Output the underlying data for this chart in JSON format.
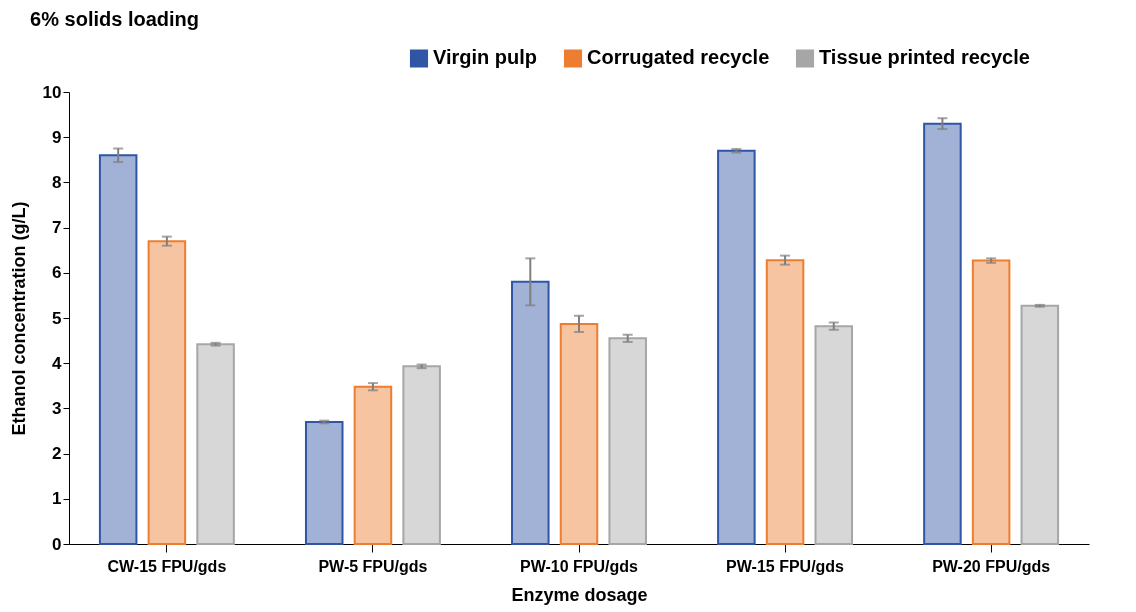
{
  "chart_data": {
    "type": "bar",
    "title": "6% solids loading",
    "xlabel": "Enzyme dosage",
    "ylabel": "Ethanol concentration (g/L)",
    "categories": [
      "CW-15 FPU/gds",
      "PW-5 FPU/gds",
      "PW-10 FPU/gds",
      "PW-15 FPU/gds",
      "PW-20 FPU/gds"
    ],
    "series": [
      {
        "name": "Virgin pulp",
        "color": "#2f55a4",
        "values": [
          8.6,
          2.7,
          5.8,
          8.7,
          9.3
        ],
        "errors": [
          0.15,
          0.03,
          0.52,
          0.04,
          0.12
        ]
      },
      {
        "name": "Corrugated recycle",
        "color": "#ed7d31",
        "values": [
          6.7,
          3.48,
          4.87,
          6.28,
          6.27
        ],
        "errors": [
          0.1,
          0.08,
          0.18,
          0.1,
          0.05
        ]
      },
      {
        "name": "Tissue printed recycle",
        "color": "#a6a6a6",
        "values": [
          4.42,
          3.93,
          4.55,
          4.82,
          5.27
        ],
        "errors": [
          0.03,
          0.04,
          0.08,
          0.08,
          0.02
        ]
      }
    ],
    "ylim": [
      0,
      10
    ],
    "yticks": [
      0,
      1,
      2,
      3,
      4,
      5,
      6,
      7,
      8,
      9,
      10
    ],
    "grid": false,
    "legend": "top right"
  }
}
